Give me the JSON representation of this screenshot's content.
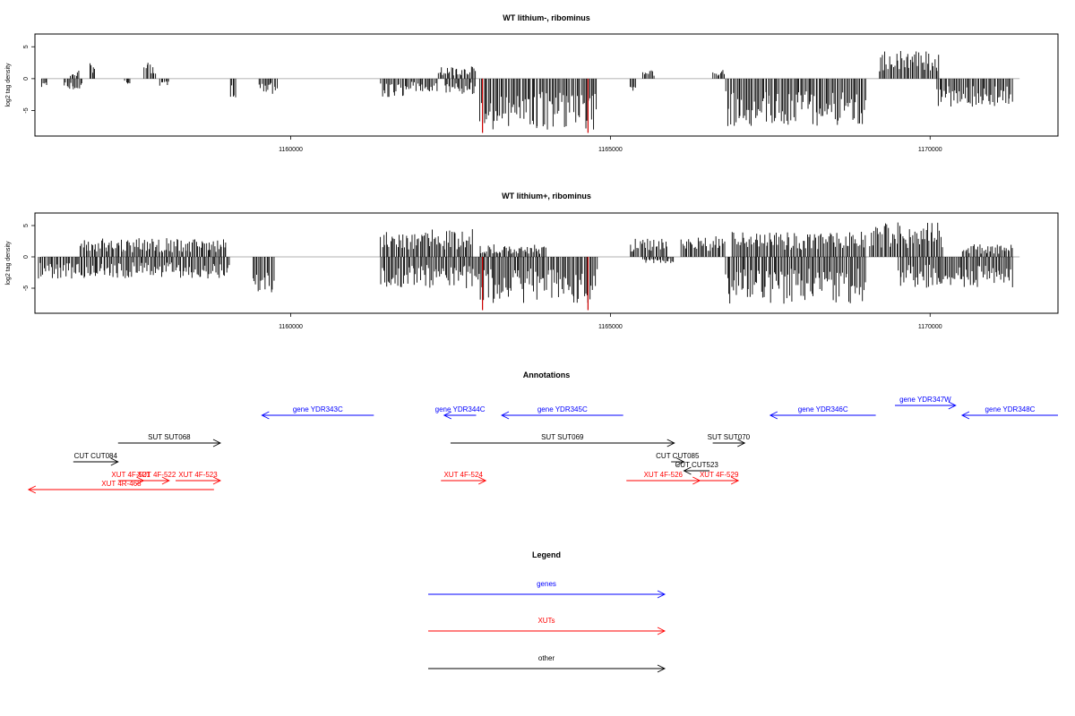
{
  "colors": {
    "gene": "#0000ff",
    "xut": "#ff0000",
    "other": "#000000",
    "highlight": "#cc0000",
    "baseline": "#999999"
  },
  "chart_data": [
    {
      "type": "bar",
      "title": "WT lithium-, ribominus",
      "ylabel": "log2 tag density",
      "xlim": [
        1156000,
        1172000
      ],
      "ylim": [
        -9,
        7
      ],
      "xticks": [
        1160000,
        1165000,
        1170000
      ],
      "xtick_labels": [
        "1160000",
        "1165000",
        "1170000"
      ],
      "yticks": [
        5,
        0,
        -5
      ],
      "ytick_labels": [
        "5",
        "0",
        "-5"
      ],
      "highlight_positions": [
        1163000,
        1164650
      ],
      "series": [
        {
          "segments": [
            {
              "start": 1156100,
              "end": 1156200,
              "val": -1.5
            },
            {
              "start": 1156450,
              "end": 1156750,
              "val": -2.0
            },
            {
              "start": 1156550,
              "end": 1156700,
              "val": 1.5
            },
            {
              "start": 1156850,
              "end": 1156950,
              "val": 3.0
            },
            {
              "start": 1157400,
              "end": 1157500,
              "val": -1.0
            },
            {
              "start": 1157700,
              "end": 1157900,
              "val": 2.5
            },
            {
              "start": 1157950,
              "end": 1158100,
              "val": -1.5
            },
            {
              "start": 1159050,
              "end": 1159150,
              "val": -3.0
            },
            {
              "start": 1159500,
              "end": 1159800,
              "val": -2.5
            },
            {
              "start": 1161400,
              "end": 1161800,
              "val": -3.0
            },
            {
              "start": 1161800,
              "end": 1162300,
              "val": -2.0
            },
            {
              "start": 1162300,
              "end": 1162900,
              "val": 2.0
            },
            {
              "start": 1162400,
              "end": 1162900,
              "val": -2.5
            },
            {
              "start": 1162950,
              "end": 1164800,
              "val": -8.0
            },
            {
              "start": 1165300,
              "end": 1165400,
              "val": -2.0
            },
            {
              "start": 1165500,
              "end": 1165700,
              "val": 1.5
            },
            {
              "start": 1166600,
              "end": 1166800,
              "val": 1.5
            },
            {
              "start": 1166800,
              "end": 1169000,
              "val": -7.5
            },
            {
              "start": 1169200,
              "end": 1170150,
              "val": 4.5
            },
            {
              "start": 1170100,
              "end": 1171300,
              "val": -4.5
            }
          ]
        }
      ]
    },
    {
      "type": "bar",
      "title": "WT lithium+, ribominus",
      "ylabel": "log2 tag density",
      "xlim": [
        1156000,
        1172000
      ],
      "ylim": [
        -9,
        7
      ],
      "xticks": [
        1160000,
        1165000,
        1170000
      ],
      "xtick_labels": [
        "1160000",
        "1165000",
        "1170000"
      ],
      "yticks": [
        5,
        0,
        -5
      ],
      "ytick_labels": [
        "5",
        "0",
        "-5"
      ],
      "highlight_positions": [
        1163000,
        1164650
      ],
      "series": [
        {
          "segments": [
            {
              "start": 1156050,
              "end": 1159050,
              "val": -3.5
            },
            {
              "start": 1156700,
              "end": 1159000,
              "val": 3.0
            },
            {
              "start": 1159400,
              "end": 1159750,
              "val": -6.0
            },
            {
              "start": 1161400,
              "end": 1162850,
              "val": 4.5
            },
            {
              "start": 1161400,
              "end": 1162850,
              "val": -5.0
            },
            {
              "start": 1162850,
              "end": 1164800,
              "val": -7.5
            },
            {
              "start": 1162950,
              "end": 1164000,
              "val": 2.0
            },
            {
              "start": 1165300,
              "end": 1165900,
              "val": 3.0
            },
            {
              "start": 1166100,
              "end": 1166800,
              "val": 3.5
            },
            {
              "start": 1165500,
              "end": 1166000,
              "val": -1.0
            },
            {
              "start": 1166800,
              "end": 1169000,
              "val": -7.5
            },
            {
              "start": 1166900,
              "end": 1169000,
              "val": 4.0
            },
            {
              "start": 1169050,
              "end": 1170200,
              "val": 5.5
            },
            {
              "start": 1169500,
              "end": 1171300,
              "val": -5.0
            },
            {
              "start": 1170500,
              "end": 1171300,
              "val": 2.0
            }
          ]
        }
      ]
    }
  ],
  "annotations": {
    "title": "Annotations",
    "features": [
      {
        "label": "gene YDR343C",
        "type": "gene",
        "start": 1161300,
        "end": 1159550,
        "row": 0
      },
      {
        "label": "gene YDR344C",
        "type": "gene",
        "start": 1162900,
        "end": 1162400,
        "row": 0
      },
      {
        "label": "gene YDR345C",
        "type": "gene",
        "start": 1165200,
        "end": 1163300,
        "row": 0
      },
      {
        "label": "gene YDR346C",
        "type": "gene",
        "start": 1169150,
        "end": 1167500,
        "row": 0
      },
      {
        "label": "gene YDR347W",
        "type": "gene",
        "start": 1169450,
        "end": 1170400,
        "row": -1
      },
      {
        "label": "gene YDR348C",
        "type": "gene",
        "start": 1172000,
        "end": 1170500,
        "row": 0
      },
      {
        "label": "SUT SUT068",
        "type": "other",
        "start": 1157300,
        "end": 1158900,
        "row": 1
      },
      {
        "label": "SUT SUT069",
        "type": "other",
        "start": 1162500,
        "end": 1166000,
        "row": 1
      },
      {
        "label": "SUT SUT070",
        "type": "other",
        "start": 1166600,
        "end": 1167100,
        "row": 1
      },
      {
        "label": "CUT CUT084",
        "type": "other",
        "start": 1156600,
        "end": 1157300,
        "row": 2
      },
      {
        "label": "CUT CUT085",
        "type": "other",
        "start": 1165950,
        "end": 1166150,
        "row": 2
      },
      {
        "label": "CUT CUT523",
        "type": "other",
        "start": 1166550,
        "end": 1166150,
        "row": 3
      },
      {
        "label": "XUT 4F-521",
        "type": "xut",
        "start": 1157300,
        "end": 1157700,
        "row": 4
      },
      {
        "label": "XUT 4F-522",
        "type": "xut",
        "start": 1157700,
        "end": 1158100,
        "row": 4
      },
      {
        "label": "XUT 4F-523",
        "type": "xut",
        "start": 1158200,
        "end": 1158900,
        "row": 4
      },
      {
        "label": "XUT 4F-524",
        "type": "xut",
        "start": 1162350,
        "end": 1163050,
        "row": 4
      },
      {
        "label": "XUT 4F-526",
        "type": "xut",
        "start": 1165250,
        "end": 1166400,
        "row": 4
      },
      {
        "label": "XUT 4F-529",
        "type": "xut",
        "start": 1166400,
        "end": 1167000,
        "row": 4
      },
      {
        "label": "XUT 4R-468",
        "type": "xut",
        "start": 1158800,
        "end": 1155900,
        "row": 5
      }
    ]
  },
  "legend": {
    "title": "Legend",
    "items": [
      {
        "label": "genes",
        "type": "gene"
      },
      {
        "label": "XUTs",
        "type": "xut"
      },
      {
        "label": "other",
        "type": "other"
      }
    ]
  }
}
